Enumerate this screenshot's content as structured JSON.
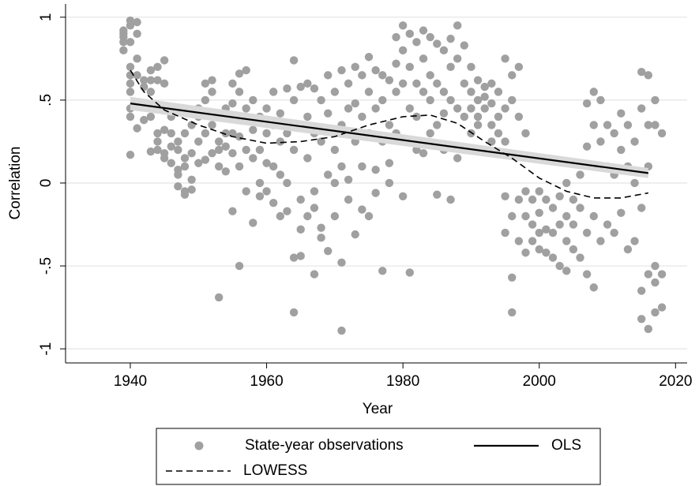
{
  "chart_data": {
    "type": "scatter",
    "xlabel": "Year",
    "ylabel": "Correlation",
    "xlim": [
      1930.5,
      2021.7
    ],
    "ylim": [
      -1.085,
      1.08
    ],
    "xticks": [
      1940,
      1960,
      1980,
      2000,
      2020
    ],
    "yticks": [
      1,
      {
        "value": 0.5,
        "label": ".5"
      },
      0,
      {
        "value": -0.5,
        "label": "-.5"
      },
      -1
    ],
    "grid": true,
    "series": [
      {
        "name": "State-year observations",
        "kind": "scatter",
        "color": "#a0a0a0",
        "x": [
          1939,
          1939,
          1939,
          1939,
          1939,
          1940,
          1940,
          1940,
          1940,
          1940,
          1940,
          1940,
          1940,
          1940,
          1940,
          1941,
          1941,
          1941,
          1941,
          1941,
          1942,
          1942,
          1942,
          1942,
          1943,
          1943,
          1943,
          1943,
          1943,
          1944,
          1944,
          1944,
          1944,
          1944,
          1945,
          1945,
          1945,
          1945,
          1945,
          1946,
          1946,
          1946,
          1946,
          1947,
          1947,
          1947,
          1947,
          1947,
          1948,
          1948,
          1948,
          1948,
          1948,
          1949,
          1949,
          1949,
          1949,
          1950,
          1950,
          1950,
          1950,
          1951,
          1951,
          1951,
          1951,
          1952,
          1952,
          1952,
          1952,
          1953,
          1953,
          1953,
          1953,
          1954,
          1954,
          1954,
          1954,
          1955,
          1955,
          1955,
          1955,
          1955,
          1956,
          1956,
          1956,
          1956,
          1956,
          1957,
          1957,
          1957,
          1957,
          1958,
          1958,
          1958,
          1958,
          1959,
          1959,
          1959,
          1959,
          1960,
          1960,
          1960,
          1960,
          1961,
          1961,
          1961,
          1961,
          1962,
          1962,
          1962,
          1962,
          1963,
          1963,
          1963,
          1963,
          1964,
          1964,
          1964,
          1964,
          1964,
          1965,
          1965,
          1965,
          1965,
          1965,
          1966,
          1966,
          1966,
          1966,
          1967,
          1967,
          1967,
          1967,
          1967,
          1968,
          1968,
          1968,
          1968,
          1969,
          1969,
          1969,
          1969,
          1970,
          1970,
          1970,
          1970,
          1971,
          1971,
          1971,
          1971,
          1971,
          1972,
          1972,
          1972,
          1972,
          1973,
          1973,
          1973,
          1973,
          1974,
          1974,
          1974,
          1974,
          1975,
          1975,
          1975,
          1975,
          1976,
          1976,
          1976,
          1976,
          1977,
          1977,
          1977,
          1977,
          1978,
          1978,
          1978,
          1978,
          1979,
          1979,
          1979,
          1979,
          1980,
          1980,
          1980,
          1980,
          1980,
          1981,
          1981,
          1981,
          1981,
          1982,
          1982,
          1982,
          1982,
          1983,
          1983,
          1983,
          1983,
          1984,
          1984,
          1984,
          1984,
          1985,
          1985,
          1985,
          1985,
          1986,
          1986,
          1986,
          1986,
          1987,
          1987,
          1987,
          1987,
          1988,
          1988,
          1988,
          1988,
          1989,
          1989,
          1989,
          1989,
          1990,
          1990,
          1990,
          1990,
          1991,
          1991,
          1991,
          1991,
          1992,
          1992,
          1992,
          1992,
          1993,
          1993,
          1993,
          1993,
          1994,
          1994,
          1994,
          1995,
          1995,
          1995,
          1995,
          1995,
          1996,
          1996,
          1996,
          1996,
          1996,
          1997,
          1997,
          1997,
          1997,
          1998,
          1998,
          1998,
          1998,
          1999,
          1999,
          1999,
          2000,
          2000,
          2000,
          2000,
          2001,
          2001,
          2001,
          2002,
          2002,
          2002,
          2003,
          2003,
          2003,
          2004,
          2004,
          2004,
          2004,
          2005,
          2005,
          2005,
          2006,
          2006,
          2006,
          2007,
          2007,
          2007,
          2007,
          2008,
          2008,
          2008,
          2008,
          2009,
          2009,
          2009,
          2010,
          2010,
          2010,
          2011,
          2011,
          2011,
          2012,
          2012,
          2012,
          2013,
          2013,
          2013,
          2014,
          2014,
          2014,
          2015,
          2015,
          2015,
          2015,
          2015,
          2016,
          2016,
          2016,
          2016,
          2016,
          2017,
          2017,
          2017,
          2017,
          2017,
          2018,
          2018,
          2018
        ],
        "values": [
          0.92,
          0.88,
          0.8,
          0.85,
          0.9,
          0.98,
          0.95,
          0.7,
          0.65,
          0.55,
          0.45,
          0.4,
          0.17,
          0.6,
          0.85,
          0.97,
          0.9,
          0.65,
          0.33,
          0.75,
          0.62,
          0.58,
          0.48,
          0.38,
          0.68,
          0.62,
          0.55,
          0.4,
          0.19,
          0.3,
          0.25,
          0.2,
          0.62,
          0.7,
          0.74,
          0.6,
          0.32,
          0.18,
          0.15,
          0.3,
          0.22,
          0.12,
          0.4,
          0.2,
          0.05,
          -0.02,
          0.08,
          0.25,
          0.1,
          -0.05,
          0.3,
          0.15,
          -0.07,
          -0.04,
          0.02,
          0.18,
          0.35,
          0.4,
          0.25,
          0.12,
          0.45,
          0.5,
          0.3,
          0.14,
          0.6,
          0.62,
          0.55,
          0.35,
          0.18,
          0.2,
          0.25,
          -0.69,
          0.1,
          0.45,
          0.3,
          0.22,
          0.07,
          0.6,
          0.48,
          -0.17,
          0.18,
          0.3,
          0.66,
          0.55,
          -0.5,
          0.1,
          0.28,
          0.68,
          0.45,
          0.2,
          -0.05,
          0.5,
          0.32,
          -0.24,
          0.15,
          0.4,
          0.2,
          0.0,
          -0.08,
          0.3,
          0.12,
          -0.05,
          0.45,
          0.55,
          0.35,
          0.1,
          -0.12,
          0.42,
          0.25,
          0.05,
          -0.2,
          0.57,
          0.3,
          0.0,
          -0.17,
          0.74,
          0.5,
          0.2,
          -0.45,
          -0.78,
          0.58,
          0.35,
          -0.1,
          -0.44,
          -0.28,
          0.6,
          0.4,
          0.15,
          -0.2,
          0.57,
          0.3,
          -0.05,
          -0.55,
          -0.15,
          0.5,
          0.25,
          -0.33,
          -0.27,
          0.65,
          0.42,
          0.05,
          -0.41,
          0.55,
          0.2,
          0.0,
          -0.2,
          0.68,
          0.35,
          0.1,
          -0.89,
          -0.48,
          0.6,
          0.45,
          0.02,
          -0.1,
          0.7,
          0.48,
          0.25,
          -0.31,
          0.65,
          0.4,
          0.1,
          -0.16,
          0.76,
          0.55,
          0.3,
          -0.2,
          0.68,
          0.45,
          0.08,
          -0.06,
          0.65,
          0.5,
          0.25,
          -0.53,
          0.62,
          0.35,
          0.12,
          0.0,
          0.88,
          0.72,
          0.55,
          0.3,
          0.95,
          0.8,
          0.6,
          0.26,
          -0.08,
          0.9,
          0.7,
          0.45,
          -0.54,
          0.85,
          0.6,
          0.4,
          0.2,
          0.92,
          0.75,
          0.55,
          0.18,
          0.88,
          0.65,
          0.5,
          0.3,
          0.84,
          0.6,
          0.35,
          -0.07,
          0.8,
          0.55,
          0.42,
          0.2,
          0.87,
          0.7,
          0.5,
          -0.1,
          0.95,
          0.75,
          0.45,
          0.15,
          0.83,
          0.6,
          0.4,
          0.2,
          0.7,
          0.55,
          0.45,
          0.3,
          0.62,
          0.5,
          0.4,
          0.35,
          0.58,
          0.52,
          0.45,
          0.2,
          0.6,
          0.48,
          0.35,
          0.25,
          0.55,
          0.4,
          0.3,
          0.75,
          0.45,
          0.25,
          -0.08,
          -0.3,
          0.65,
          0.5,
          -0.2,
          -0.57,
          -0.78,
          0.7,
          0.4,
          -0.1,
          -0.35,
          0.3,
          -0.05,
          -0.2,
          -0.42,
          -0.1,
          -0.25,
          -0.35,
          -0.05,
          -0.18,
          -0.3,
          -0.4,
          -0.1,
          -0.28,
          -0.42,
          -0.15,
          -0.3,
          -0.45,
          -0.08,
          -0.25,
          -0.5,
          0.0,
          -0.2,
          -0.35,
          -0.53,
          -0.1,
          -0.25,
          -0.4,
          0.05,
          -0.15,
          -0.45,
          0.48,
          0.22,
          -0.3,
          -0.55,
          0.55,
          0.35,
          -0.2,
          -0.63,
          0.5,
          0.25,
          -0.35,
          0.35,
          0.1,
          -0.25,
          0.3,
          0.05,
          -0.3,
          0.42,
          0.2,
          -0.18,
          0.35,
          0.1,
          -0.4,
          0.25,
          0.0,
          -0.35,
          0.67,
          0.45,
          -0.15,
          -0.65,
          -0.82,
          0.65,
          0.35,
          0.1,
          -0.55,
          -0.88,
          0.5,
          0.35,
          -0.5,
          -0.78,
          -0.6,
          0.3,
          -0.55,
          -0.75
        ]
      },
      {
        "name": "OLS",
        "kind": "line",
        "style": "solid",
        "color": "#000000",
        "x": [
          1940,
          2016
        ],
        "values": [
          0.48,
          0.06
        ],
        "lower": [
          0.44,
          0.03
        ],
        "upper": [
          0.52,
          0.09
        ],
        "band_color": "#d9d9d9"
      },
      {
        "name": "LOWESS",
        "kind": "line",
        "style": "dashed",
        "color": "#000000",
        "x": [
          1940,
          1942,
          1945,
          1950,
          1955,
          1960,
          1965,
          1970,
          1975,
          1980,
          1984,
          1988,
          1992,
          1996,
          2000,
          2004,
          2008,
          2012,
          2016
        ],
        "values": [
          0.68,
          0.55,
          0.44,
          0.35,
          0.28,
          0.24,
          0.25,
          0.28,
          0.35,
          0.4,
          0.41,
          0.36,
          0.25,
          0.15,
          0.03,
          -0.05,
          -0.09,
          -0.09,
          -0.06
        ]
      }
    ]
  }
}
